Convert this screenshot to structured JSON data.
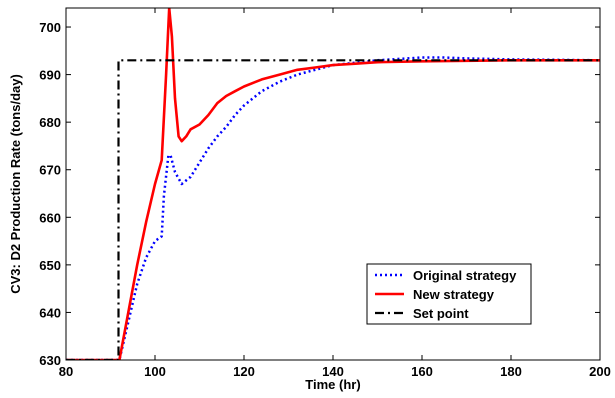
{
  "chart_data": {
    "type": "line",
    "title": "",
    "xlabel": "Time (hr)",
    "ylabel": "CV3: D2 Production Rate (tons/day)",
    "xlim": [
      80,
      200
    ],
    "ylim": [
      630,
      704
    ],
    "xticks": [
      80,
      100,
      120,
      140,
      160,
      180,
      200
    ],
    "yticks": [
      630,
      640,
      650,
      660,
      670,
      680,
      690,
      700
    ],
    "grid": false,
    "legend_position": "bottom-right",
    "series": [
      {
        "name": "Original strategy",
        "color": "#0000ff",
        "style": "dotted",
        "x": [
          80,
          92,
          94,
          96,
          98,
          100,
          101.5,
          102,
          103,
          103.5,
          104.5,
          106,
          108,
          110,
          112,
          114,
          116,
          118,
          120,
          124,
          128,
          132,
          136,
          140,
          145,
          150,
          155,
          160,
          165,
          170,
          180,
          190,
          200
        ],
        "y": [
          630,
          630,
          638,
          646,
          651.5,
          655,
          656,
          664.5,
          673,
          673,
          669.5,
          667,
          668.5,
          671.5,
          674.5,
          677,
          679,
          681.5,
          683.5,
          686.5,
          688.5,
          690,
          691,
          692,
          692.5,
          693,
          693.3,
          693.6,
          693.6,
          693.4,
          693.2,
          693.1,
          693
        ]
      },
      {
        "name": "New strategy",
        "color": "#ff0000",
        "style": "solid",
        "x": [
          80,
          92,
          94,
          96,
          98,
          100,
          101.5,
          102.5,
          103.2,
          103.8,
          104.5,
          105.3,
          106,
          107,
          108,
          110,
          112,
          114,
          116,
          118,
          120,
          124,
          128,
          132,
          136,
          140,
          145,
          150,
          160,
          170,
          180,
          190,
          200
        ],
        "y": [
          630,
          630,
          640,
          650,
          659,
          667,
          672,
          690,
          704,
          698,
          685,
          677,
          676,
          677,
          678.5,
          679.5,
          681.5,
          684,
          685.5,
          686.5,
          687.5,
          689,
          690,
          691,
          691.5,
          692,
          692.3,
          692.6,
          692.8,
          692.9,
          693,
          693,
          693
        ]
      },
      {
        "name": "Set point",
        "color": "#000000",
        "style": "dashdot",
        "x": [
          80,
          91.8,
          91.8,
          200
        ],
        "y": [
          630,
          630,
          693,
          693
        ]
      }
    ]
  }
}
